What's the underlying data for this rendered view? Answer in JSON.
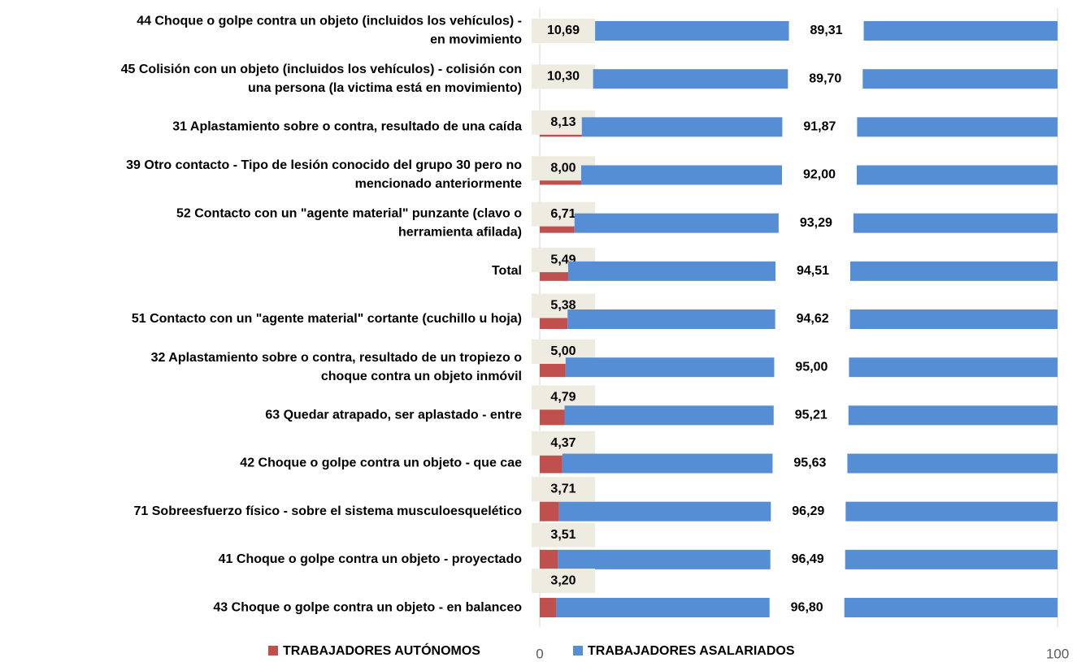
{
  "chart_data": {
    "type": "stacked_bar_horizontal",
    "categories": [
      [
        "44 Choque o golpe contra un objeto (incluidos los vehículos) -",
        "en movimiento"
      ],
      [
        "45 Colisión con un objeto (incluidos los vehículos) - colisión con",
        "una persona (la victima está en movimiento)"
      ],
      [
        "31 Aplastamiento sobre o contra, resultado de una caída"
      ],
      [
        "39 Otro contacto - Tipo de lesión conocido del grupo 30 pero no",
        "mencionado anteriormente"
      ],
      [
        "52 Contacto con un \"agente material\" punzante (clavo o",
        "herramienta afilada)"
      ],
      [
        "Total"
      ],
      [
        "51 Contacto con un \"agente material\" cortante (cuchillo u hoja)"
      ],
      [
        "32 Aplastamiento sobre o contra, resultado de un tropiezo o",
        "choque contra un objeto inmóvil"
      ],
      [
        "63 Quedar atrapado, ser aplastado - entre"
      ],
      [
        "42 Choque o golpe contra un objeto - que cae"
      ],
      [
        "71 Sobreesfuerzo físico - sobre el sistema musculoesquelético"
      ],
      [
        "41 Choque o golpe contra un objeto - proyectado"
      ],
      [
        "43 Choque o golpe contra un objeto - en balanceo"
      ]
    ],
    "series": [
      {
        "name": "TRABAJADORES AUTÓNOMOS",
        "color": "#c0504d",
        "values": [
          10.69,
          10.3,
          8.13,
          8.0,
          6.71,
          5.49,
          5.38,
          5.0,
          4.79,
          4.37,
          3.71,
          3.51,
          3.2
        ],
        "value_labels": [
          "10,69",
          "10,30",
          "8,13",
          "8,00",
          "6,71",
          "5,49",
          "5,38",
          "5,00",
          "4,79",
          "4,37",
          "3,71",
          "3,51",
          "3,20"
        ]
      },
      {
        "name": "TRABAJADORES ASALARIADOS",
        "color": "#558ed5",
        "values": [
          89.31,
          89.7,
          91.87,
          92.0,
          93.29,
          94.51,
          94.62,
          95.0,
          95.21,
          95.63,
          96.29,
          96.49,
          96.8
        ],
        "value_labels": [
          "89,31",
          "89,70",
          "91,87",
          "92,00",
          "93,29",
          "94,51",
          "94,62",
          "95,00",
          "95,21",
          "95,63",
          "96,29",
          "96,49",
          "96,80"
        ]
      }
    ],
    "xlim": [
      0,
      100
    ],
    "xticks": [
      0,
      100
    ],
    "grid": true
  }
}
